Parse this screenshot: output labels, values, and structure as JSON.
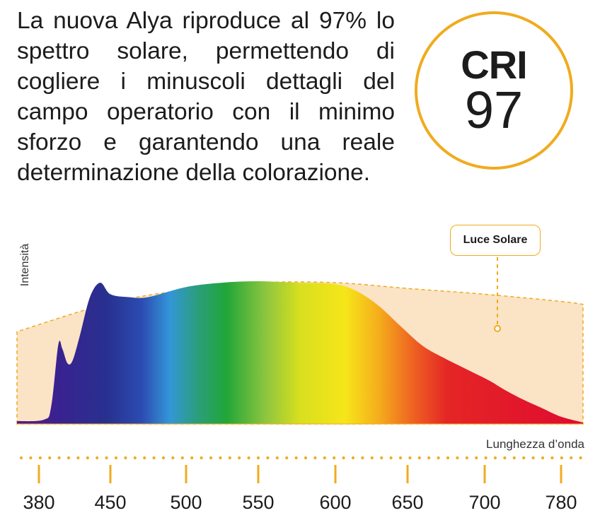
{
  "intro_text": "La nuova Alya riproduce al 97% lo spettro solare, permettendo di cogliere i minuscoli dettagli del campo operatorio con il minimo sforzo e garantendo una reale determinazione della colorazione.",
  "badge": {
    "label": "CRI",
    "value": "97"
  },
  "colors": {
    "accent": "#f0ab1e",
    "sunlight_fill": "#fbe3c6"
  },
  "chart_data": {
    "type": "area",
    "title": "",
    "xlabel": "Lunghezza d’onda",
    "ylabel": "Intensità",
    "xlim": [
      380,
      800
    ],
    "ylim": [
      0,
      1
    ],
    "x_ticks": [
      380,
      450,
      500,
      550,
      600,
      650,
      700,
      780
    ],
    "grid": false,
    "legend": {
      "position": "top-right",
      "entries": [
        "Luce Solare"
      ]
    },
    "series": [
      {
        "name": "Luce Solare",
        "x": [
          380,
          450,
          500,
          550,
          600,
          650,
          700,
          780,
          800
        ],
        "y": [
          0.64,
          0.84,
          0.93,
          0.98,
          0.98,
          0.94,
          0.9,
          0.85,
          0.83
        ]
      },
      {
        "x": [
          380,
          385,
          392,
          399,
          403,
          408,
          413,
          420,
          430,
          440,
          450,
          462,
          475,
          500,
          525,
          550,
          575,
          600,
          615,
          630,
          645,
          660,
          675,
          690,
          705,
          720,
          740,
          760,
          780,
          800
        ],
        "y": [
          0.02,
          0.03,
          0.12,
          0.55,
          0.52,
          0.42,
          0.44,
          0.61,
          0.88,
          0.98,
          0.9,
          0.88,
          0.88,
          0.95,
          0.98,
          0.99,
          0.98,
          0.97,
          0.92,
          0.82,
          0.68,
          0.54,
          0.45,
          0.37,
          0.3,
          0.24,
          0.17,
          0.11,
          0.05,
          0.01
        ]
      }
    ]
  }
}
